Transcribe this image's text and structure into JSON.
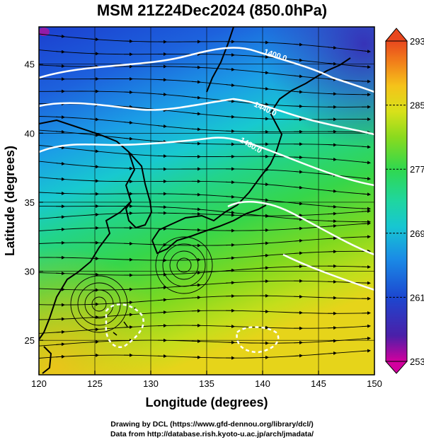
{
  "title": "MSM 21Z24Dec2024 (850.0hPa)",
  "map": {
    "xlabel": "Longitude (degrees)",
    "ylabel": "Latitude  (degrees)",
    "xlim": [
      120,
      150
    ],
    "ylim": [
      22.5,
      47.7
    ],
    "x_ticks": [
      "120",
      "125",
      "130",
      "135",
      "140",
      "145",
      "150"
    ],
    "y_ticks": [
      "25",
      "30",
      "35",
      "40",
      "45"
    ],
    "x_tick_values": [
      120,
      125,
      130,
      135,
      140,
      145,
      150
    ],
    "y_tick_values": [
      25,
      30,
      35,
      40,
      45
    ],
    "fill_variable": "temperature",
    "contour_labels": [
      "1400.0",
      "1440.0",
      "1480.0"
    ],
    "contour_label_values": [
      1400,
      1440,
      1480
    ],
    "grid": true,
    "streamlines": true,
    "coastlines": true
  },
  "colorbar": {
    "tick_labels": [
      "293",
      "285",
      "277",
      "269",
      "261",
      "253"
    ],
    "tick_values": [
      293,
      285,
      277,
      269,
      261,
      253
    ],
    "range": [
      253,
      293
    ],
    "extend_arrows": true,
    "colors": [
      "#d2009e",
      "#4b1fa8",
      "#1c47d0",
      "#1a8be6",
      "#17c6d2",
      "#1fd6a0",
      "#30d84e",
      "#8ada1e",
      "#d8e11a",
      "#f5c31a",
      "#f2831a",
      "#e8471e"
    ]
  },
  "credits": {
    "line1": "Drawing by DCL (https://www.gfd-dennou.org/library/dcl/)",
    "line2": "Data from http://database.rish.kyoto-u.ac.jp/arch/jmadata/"
  }
}
